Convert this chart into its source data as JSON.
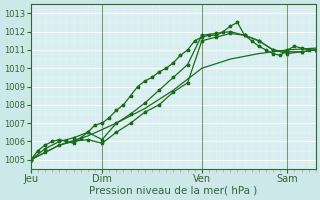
{
  "xlabel": "Pression niveau de la mer( hPa )",
  "bg_color": "#cce8e8",
  "plot_bg_color": "#d8eef0",
  "grid_color": "#ffffff",
  "line_color": "#1a6b1a",
  "x_tick_positions": [
    0,
    40,
    96,
    144
  ],
  "x_tick_labels": [
    "Jeu",
    "Dim",
    "Ven",
    "Sam"
  ],
  "ylim": [
    1004.5,
    1013.5
  ],
  "xlim": [
    0,
    160
  ],
  "yticks": [
    1005,
    1006,
    1007,
    1008,
    1009,
    1010,
    1011,
    1012,
    1013
  ],
  "vlines": [
    40,
    96,
    144
  ],
  "vline_color": "#336633",
  "series1_x": [
    0,
    4,
    8,
    12,
    16,
    20,
    24,
    28,
    32,
    36,
    40,
    44,
    48,
    52,
    56,
    60,
    64,
    68,
    72,
    76,
    80,
    84,
    88,
    92,
    96,
    100,
    104,
    108,
    112,
    116,
    120,
    124,
    128,
    132,
    136,
    140,
    144,
    148,
    152,
    156,
    160
  ],
  "series1_y": [
    1005.0,
    1005.5,
    1005.8,
    1006.0,
    1006.1,
    1006.0,
    1005.9,
    1006.2,
    1006.5,
    1006.9,
    1007.0,
    1007.3,
    1007.7,
    1008.0,
    1008.5,
    1009.0,
    1009.3,
    1009.5,
    1009.8,
    1010.0,
    1010.3,
    1010.7,
    1011.0,
    1011.5,
    1011.7,
    1011.8,
    1011.8,
    1012.0,
    1012.3,
    1012.5,
    1011.8,
    1011.5,
    1011.2,
    1011.0,
    1010.8,
    1010.7,
    1011.0,
    1011.2,
    1011.1,
    1011.0,
    1011.0
  ],
  "series2_x": [
    0,
    8,
    16,
    24,
    32,
    40,
    48,
    56,
    64,
    72,
    80,
    88,
    96,
    104,
    112,
    120,
    128,
    136,
    144,
    152,
    160
  ],
  "series2_y": [
    1005.0,
    1005.6,
    1006.0,
    1006.2,
    1006.5,
    1006.1,
    1007.0,
    1007.5,
    1008.1,
    1008.8,
    1009.5,
    1010.2,
    1011.8,
    1011.9,
    1012.0,
    1011.8,
    1011.5,
    1011.0,
    1010.8,
    1010.9,
    1011.0
  ],
  "series3_x": [
    0,
    8,
    16,
    24,
    32,
    40,
    48,
    56,
    64,
    72,
    80,
    88,
    96,
    104,
    112,
    120,
    128,
    136,
    144,
    152,
    160
  ],
  "series3_y": [
    1005.0,
    1005.4,
    1005.8,
    1006.0,
    1006.1,
    1005.9,
    1006.5,
    1007.0,
    1007.6,
    1008.0,
    1008.7,
    1009.2,
    1011.5,
    1011.7,
    1011.9,
    1011.8,
    1011.5,
    1011.0,
    1010.9,
    1010.9,
    1011.0
  ],
  "series4_x": [
    0,
    16,
    32,
    48,
    64,
    80,
    96,
    112,
    128,
    144,
    160
  ],
  "series4_y": [
    1005.0,
    1005.8,
    1006.3,
    1007.0,
    1007.8,
    1008.8,
    1010.0,
    1010.5,
    1010.8,
    1011.0,
    1011.1
  ]
}
